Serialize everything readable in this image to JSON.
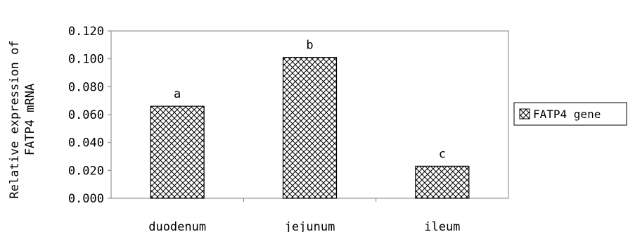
{
  "chart_data": {
    "type": "bar",
    "categories": [
      "duodenum",
      "jejunum",
      "ileum"
    ],
    "series": [
      {
        "name": "FATP4 gene",
        "values": [
          0.066,
          0.101,
          0.023
        ],
        "pattern": "crosshatch"
      }
    ],
    "significance_labels": [
      "a",
      "b",
      "c"
    ],
    "ylabel": [
      "Relative expression of",
      "FATP4 mRNA"
    ],
    "ylim": [
      0,
      0.12
    ],
    "yticks": [
      0.0,
      0.02,
      0.04,
      0.06,
      0.08,
      0.1,
      0.12
    ],
    "ytick_labels": [
      "0.000",
      "0.020",
      "0.040",
      "0.060",
      "0.080",
      "0.100",
      "0.120"
    ],
    "grid": false,
    "legend_position": "right",
    "colors": {
      "bar_fill": "#ffffff",
      "hatch": "#000000",
      "axis": "#808080"
    }
  }
}
